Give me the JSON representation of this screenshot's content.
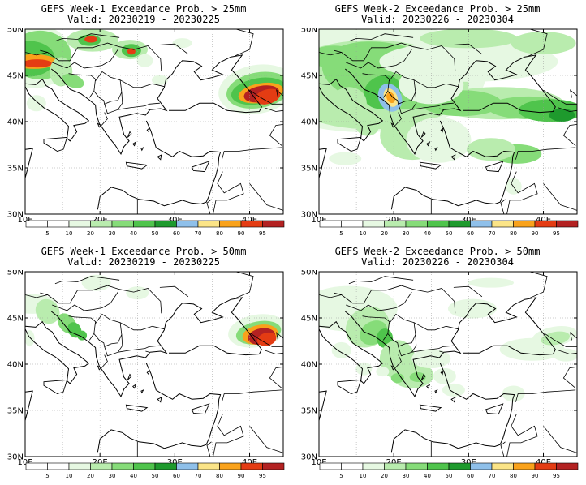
{
  "panels": [
    {
      "title1": "GEFS Week-1 Exceedance Prob. > 25mm",
      "title2": "Valid: 20230219 - 20230225"
    },
    {
      "title1": "GEFS Week-2 Exceedance Prob. > 25mm",
      "title2": "Valid: 20230226 - 20230304"
    },
    {
      "title1": "GEFS Week-1 Exceedance Prob. > 50mm",
      "title2": "Valid: 20230219 - 20230225"
    },
    {
      "title1": "GEFS Week-2 Exceedance Prob. > 50mm",
      "title2": "Valid: 20230226 - 20230304"
    }
  ],
  "lat_labels": [
    "50N",
    "45N",
    "40N",
    "35N",
    "30N"
  ],
  "lon_labels": [
    "10E",
    "20E",
    "30E",
    "40E"
  ],
  "colorbar": {
    "labels": [
      "5",
      "10",
      "20",
      "30",
      "40",
      "50",
      "60",
      "70",
      "80",
      "90",
      "95"
    ],
    "colors": [
      "#ffffff",
      "#e6f8e2",
      "#b9ecae",
      "#86dc79",
      "#4fc44c",
      "#1e9a2d",
      "#8fc0ea",
      "#fbe487",
      "#f9a21b",
      "#e43c13",
      "#b32222"
    ]
  }
}
